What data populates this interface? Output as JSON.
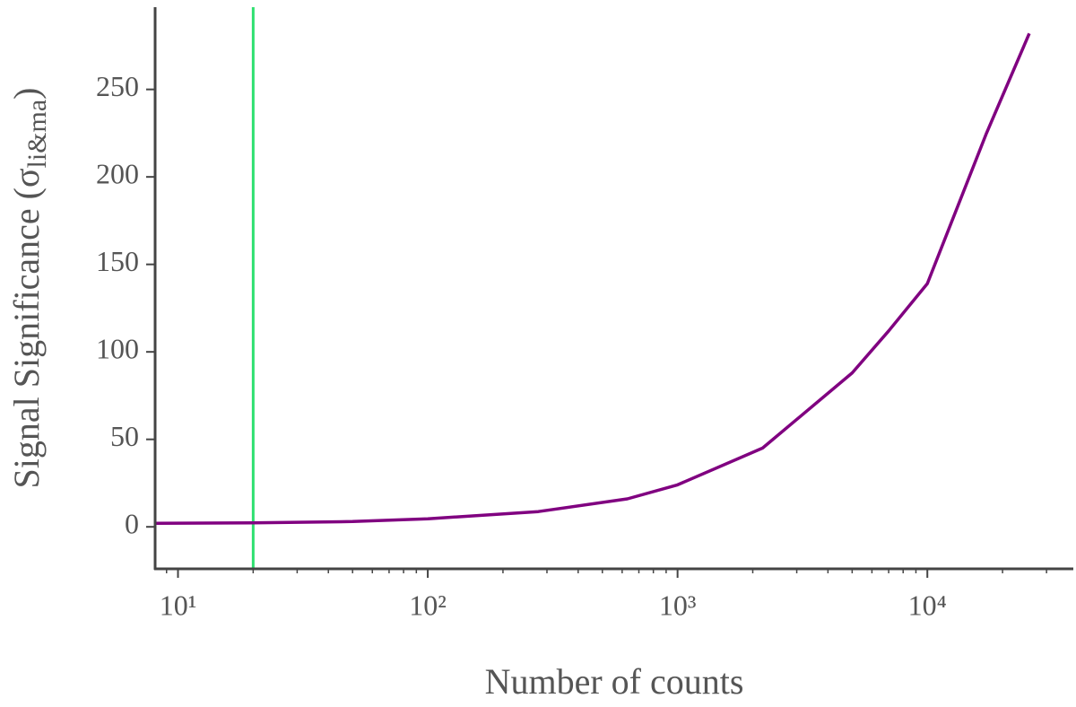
{
  "chart_data": {
    "type": "line",
    "xlabel": "Number of counts",
    "ylabel_parts": [
      "Signal Significance (σ",
      "li&ma",
      ")"
    ],
    "xscale": "log",
    "xlim": [
      8.1,
      38400
    ],
    "ylim": [
      -24,
      297
    ],
    "xticks": [
      {
        "value": 10,
        "label": "10¹"
      },
      {
        "value": 100,
        "label": "10²"
      },
      {
        "value": 1000,
        "label": "10³"
      },
      {
        "value": 10000,
        "label": "10⁴"
      }
    ],
    "xminorticks": [
      9,
      20,
      30,
      40,
      50,
      60,
      70,
      80,
      90,
      200,
      300,
      400,
      500,
      600,
      700,
      800,
      900,
      2000,
      3000,
      4000,
      5000,
      6000,
      7000,
      8000,
      9000,
      20000,
      30000
    ],
    "yticks": [
      0,
      50,
      100,
      150,
      200,
      250
    ],
    "x": [
      8.1,
      20,
      50,
      100,
      277,
      630,
      1000,
      2190,
      5000,
      7000,
      10000,
      17250,
      25600
    ],
    "series": [
      {
        "color": "#800080",
        "values": [
          2,
          2.3,
          3,
          4.6,
          8.7,
          16,
          24,
          45,
          88,
          112,
          139,
          225,
          282
        ]
      }
    ],
    "vlines": [
      {
        "x": 20,
        "color": "#2ee070"
      }
    ]
  }
}
